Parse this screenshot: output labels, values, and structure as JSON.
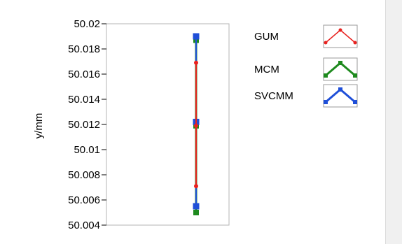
{
  "chart_data": {
    "type": "line",
    "ylabel": "y/mm",
    "ylim": [
      50.004,
      50.02
    ],
    "yticks": [
      "50.02",
      "50.018",
      "50.016",
      "50.014",
      "50.012",
      "50.01",
      "50.008",
      "50.006",
      "50.004"
    ],
    "ytick_values": [
      50.02,
      50.018,
      50.016,
      50.014,
      50.012,
      50.01,
      50.008,
      50.006,
      50.004
    ],
    "legend_position": "top-right",
    "series": [
      {
        "name": "GUM",
        "color": "#e8221f",
        "marker": "circle",
        "values": [
          50.0071,
          50.0119,
          50.0169
        ]
      },
      {
        "name": "MCM",
        "color": "#1e8a1e",
        "marker": "square",
        "values": [
          50.005,
          50.0119,
          50.0187
        ]
      },
      {
        "name": "SVCMM",
        "color": "#1f4fd8",
        "marker": "square",
        "values": [
          50.0055,
          50.0122,
          50.019
        ]
      }
    ]
  }
}
